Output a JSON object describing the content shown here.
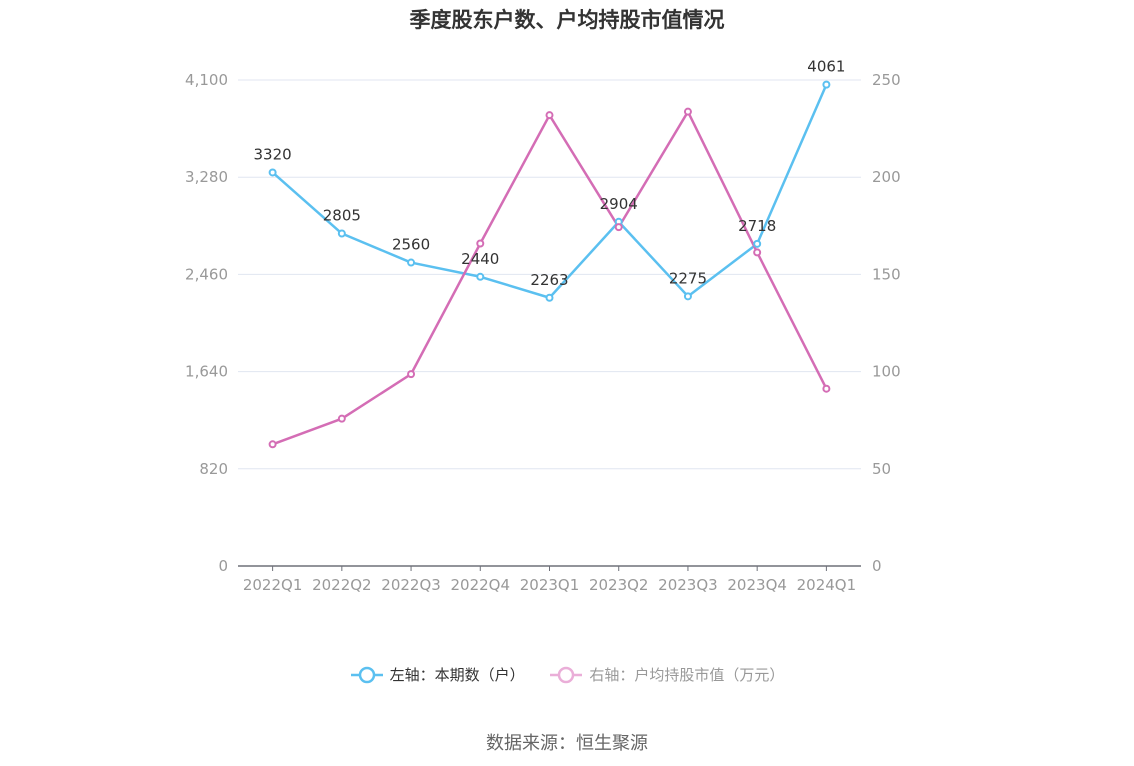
{
  "chart_data": {
    "type": "line",
    "title": "季度股东户数、户均持股市值情况",
    "categories": [
      "2022Q1",
      "2022Q2",
      "2022Q3",
      "2022Q4",
      "2023Q1",
      "2023Q2",
      "2023Q3",
      "2023Q4",
      "2024Q1"
    ],
    "left_axis": {
      "ticks": [
        "0",
        "820",
        "1,640",
        "2,460",
        "3,280",
        "4,100"
      ],
      "ylim": [
        0,
        4100
      ]
    },
    "right_axis": {
      "ticks": [
        "0",
        "50",
        "100",
        "150",
        "200",
        "250"
      ],
      "ylim": [
        0,
        250
      ]
    },
    "grid": true,
    "legend_position": "bottom",
    "series": [
      {
        "name": "左轴：本期数（户）",
        "axis": "left",
        "color": "#5bc0f0",
        "values": [
          3320,
          2805,
          2560,
          2440,
          2263,
          2904,
          2275,
          2718,
          4061
        ],
        "labels": [
          "3320",
          "2805",
          "2560",
          "2440",
          "2263",
          "2904",
          "2275",
          "2718",
          "4061"
        ]
      },
      {
        "name": "右轴：户均持股市值（万元）",
        "axis": "right",
        "color": "#d46db5",
        "values": [
          62.6,
          75.8,
          98.7,
          165.9,
          231.9,
          174.3,
          233.7,
          161.3,
          91.2
        ]
      }
    ]
  },
  "source": "数据来源：恒生聚源"
}
